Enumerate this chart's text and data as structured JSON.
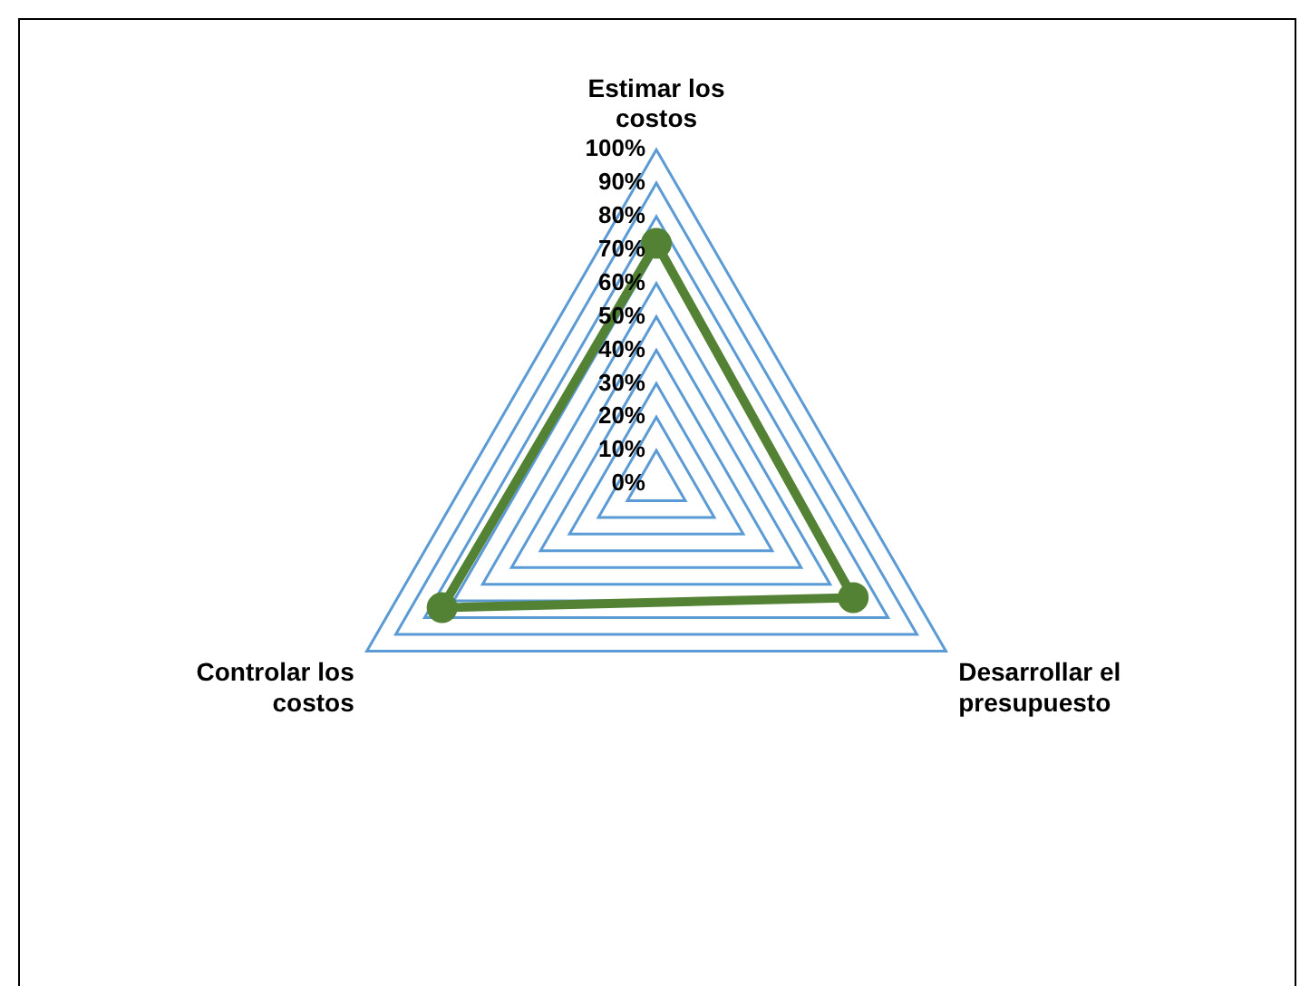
{
  "chart_data": {
    "type": "radar",
    "categories": [
      "Estimar los costos",
      "Desarrollar el presupuesto",
      "Controlar los costos"
    ],
    "series": [
      {
        "color": "#548235",
        "values": [
          72,
          68,
          74
        ]
      }
    ],
    "ylim": [
      0,
      100
    ],
    "yticks": [
      {
        "value": 0,
        "label": "0%"
      },
      {
        "value": 10,
        "label": "10%"
      },
      {
        "value": 20,
        "label": "20%"
      },
      {
        "value": 30,
        "label": "30%"
      },
      {
        "value": 40,
        "label": "40%"
      },
      {
        "value": 50,
        "label": "50%"
      },
      {
        "value": 60,
        "label": "60%"
      },
      {
        "value": 70,
        "label": "70%"
      },
      {
        "value": 80,
        "label": "80%"
      },
      {
        "value": 90,
        "label": "90%"
      },
      {
        "value": 100,
        "label": "100%"
      }
    ],
    "grid": true,
    "legend": false,
    "marker": "circle"
  }
}
